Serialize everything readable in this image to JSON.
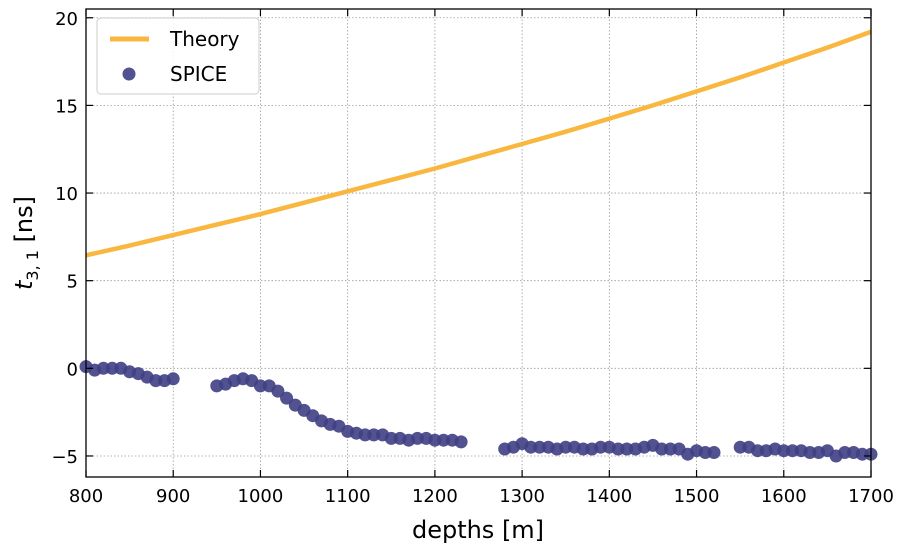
{
  "chart_data": {
    "type": "scatter",
    "title": "",
    "xlabel": "depths [m]",
    "ylabel": {
      "main": "t",
      "sub": "3, 1",
      "unit": " [ns]"
    },
    "xlim": [
      800,
      1700
    ],
    "ylim": [
      -6.2,
      20.5
    ],
    "xticks": [
      800,
      900,
      1000,
      1100,
      1200,
      1300,
      1400,
      1500,
      1600,
      1700
    ],
    "yticks": [
      -5,
      0,
      5,
      10,
      15,
      20
    ],
    "grid": true,
    "legend": {
      "position": "top-left",
      "entries": [
        "Theory",
        "SPICE"
      ]
    },
    "colors": {
      "theory": "#f9b73f",
      "spice": "#3f3f84"
    },
    "series": [
      {
        "name": "Theory",
        "kind": "line",
        "x": [
          800,
          850,
          900,
          950,
          1000,
          1050,
          1100,
          1150,
          1200,
          1250,
          1300,
          1350,
          1400,
          1450,
          1500,
          1550,
          1600,
          1650,
          1700
        ],
        "values": [
          6.45,
          7.0,
          7.6,
          8.2,
          8.8,
          9.45,
          10.1,
          10.75,
          11.4,
          12.1,
          12.8,
          13.5,
          14.25,
          15.0,
          15.8,
          16.6,
          17.45,
          18.3,
          19.2
        ]
      },
      {
        "name": "SPICE",
        "kind": "scatter",
        "x": [
          800,
          810,
          820,
          830,
          840,
          850,
          860,
          870,
          880,
          890,
          900,
          950,
          960,
          970,
          980,
          990,
          1000,
          1010,
          1020,
          1030,
          1040,
          1050,
          1060,
          1070,
          1080,
          1090,
          1100,
          1110,
          1120,
          1130,
          1140,
          1150,
          1160,
          1170,
          1180,
          1190,
          1200,
          1210,
          1220,
          1230,
          1280,
          1290,
          1300,
          1310,
          1320,
          1330,
          1340,
          1350,
          1360,
          1370,
          1380,
          1390,
          1400,
          1410,
          1420,
          1430,
          1440,
          1450,
          1460,
          1470,
          1480,
          1490,
          1500,
          1510,
          1520,
          1550,
          1560,
          1570,
          1580,
          1590,
          1600,
          1610,
          1620,
          1630,
          1640,
          1650,
          1660,
          1670,
          1680,
          1690,
          1700
        ],
        "values": [
          0.1,
          -0.1,
          0.0,
          0.0,
          0.0,
          -0.2,
          -0.3,
          -0.5,
          -0.7,
          -0.7,
          -0.6,
          -1.0,
          -0.9,
          -0.7,
          -0.6,
          -0.7,
          -1.0,
          -1.0,
          -1.3,
          -1.7,
          -2.1,
          -2.4,
          -2.7,
          -3.0,
          -3.2,
          -3.3,
          -3.6,
          -3.7,
          -3.8,
          -3.8,
          -3.8,
          -4.0,
          -4.0,
          -4.1,
          -4.0,
          -4.0,
          -4.1,
          -4.1,
          -4.1,
          -4.2,
          -4.6,
          -4.5,
          -4.3,
          -4.5,
          -4.5,
          -4.5,
          -4.6,
          -4.5,
          -4.5,
          -4.6,
          -4.6,
          -4.5,
          -4.5,
          -4.6,
          -4.6,
          -4.6,
          -4.5,
          -4.4,
          -4.6,
          -4.6,
          -4.6,
          -4.9,
          -4.7,
          -4.8,
          -4.8,
          -4.5,
          -4.5,
          -4.7,
          -4.7,
          -4.6,
          -4.7,
          -4.7,
          -4.7,
          -4.8,
          -4.8,
          -4.7,
          -5.0,
          -4.8,
          -4.8,
          -4.9,
          -4.9
        ]
      }
    ]
  }
}
